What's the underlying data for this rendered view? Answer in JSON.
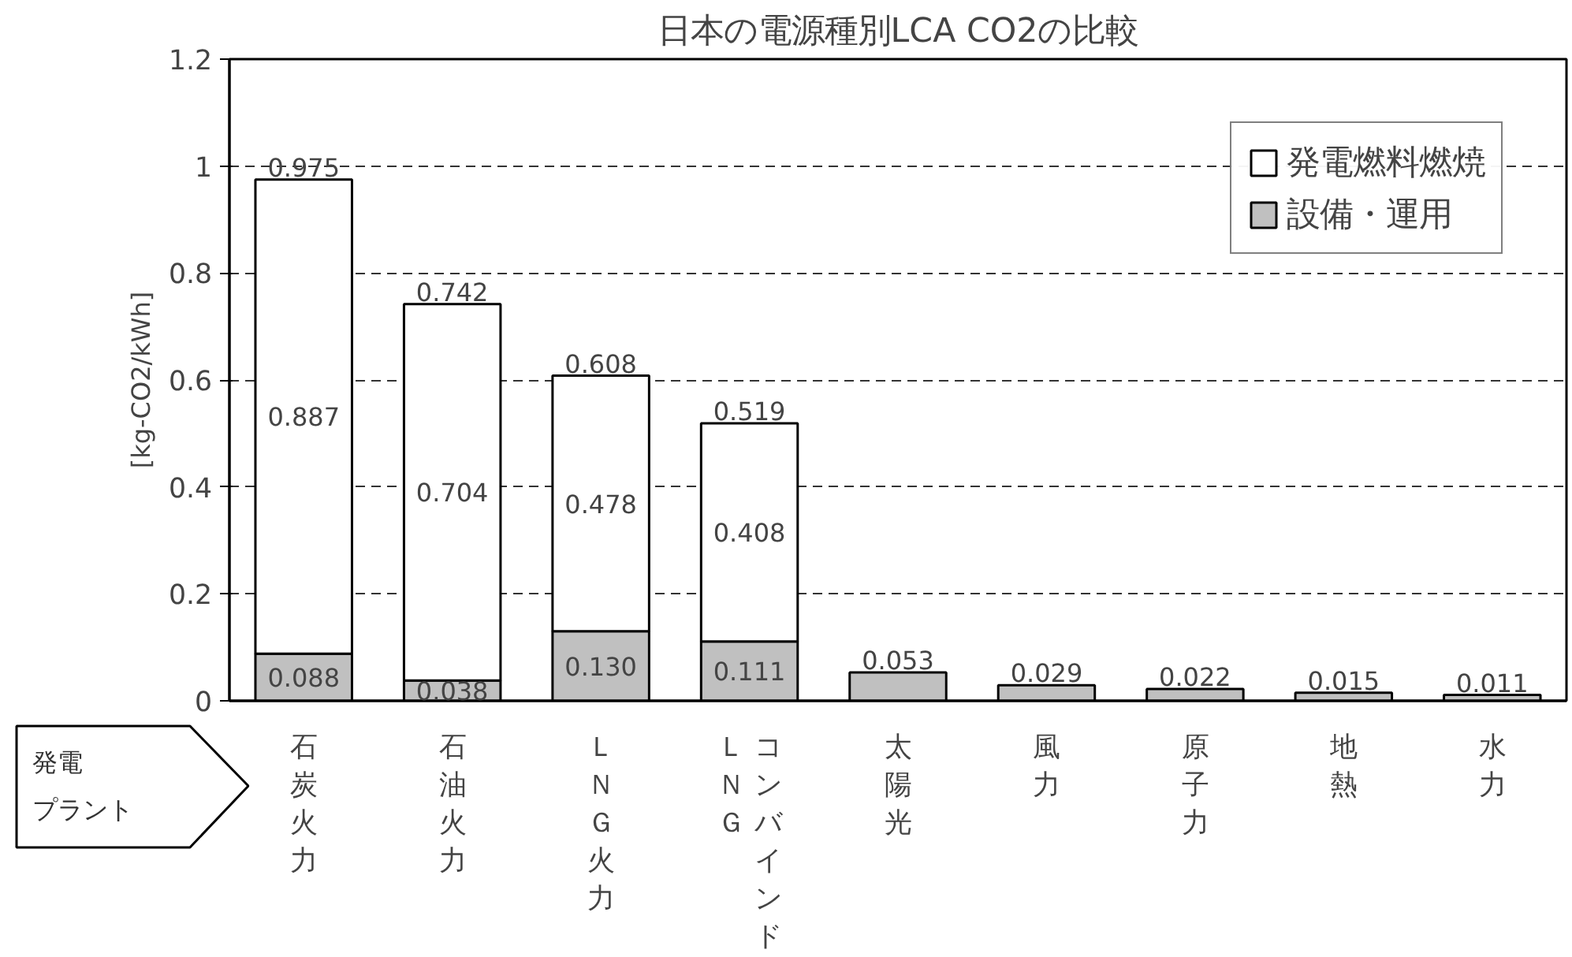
{
  "chart_data": {
    "type": "bar",
    "stacked": true,
    "title": "日本の電源種別LCA CO2の比較",
    "ylabel": "[kg-CO2/kWh]",
    "categories": [
      "石炭火力",
      "石油火力",
      "ＬＮＧ火力",
      "ＬＮＧコンバインド",
      "太陽光",
      "風力",
      "原子力",
      "地熱",
      "水力"
    ],
    "series": [
      {
        "name": "設備・運用",
        "color": "#c0c0c0",
        "values": [
          0.088,
          0.038,
          0.13,
          0.111,
          0.053,
          0.029,
          0.022,
          0.015,
          0.011
        ],
        "value_labels": [
          "0.088",
          "0.038",
          "0.130",
          "0.111",
          null,
          null,
          null,
          null,
          null
        ]
      },
      {
        "name": "発電燃料燃焼",
        "color": "#ffffff",
        "values": [
          0.887,
          0.704,
          0.478,
          0.408,
          null,
          null,
          null,
          null,
          null
        ],
        "value_labels": [
          "0.887",
          "0.704",
          "0.478",
          "0.408",
          null,
          null,
          null,
          null,
          null
        ]
      }
    ],
    "totals": [
      "0.975",
      "0.742",
      "0.608",
      "0.519",
      "0.053",
      "0.029",
      "0.022",
      "0.015",
      "0.011"
    ],
    "ylim": [
      0,
      1.2
    ],
    "yticks": [
      0,
      0.2,
      0.4,
      0.6,
      0.8,
      1,
      1.2
    ],
    "grid": "y",
    "legend": "top right",
    "annotations": [
      "発電プラント"
    ]
  }
}
